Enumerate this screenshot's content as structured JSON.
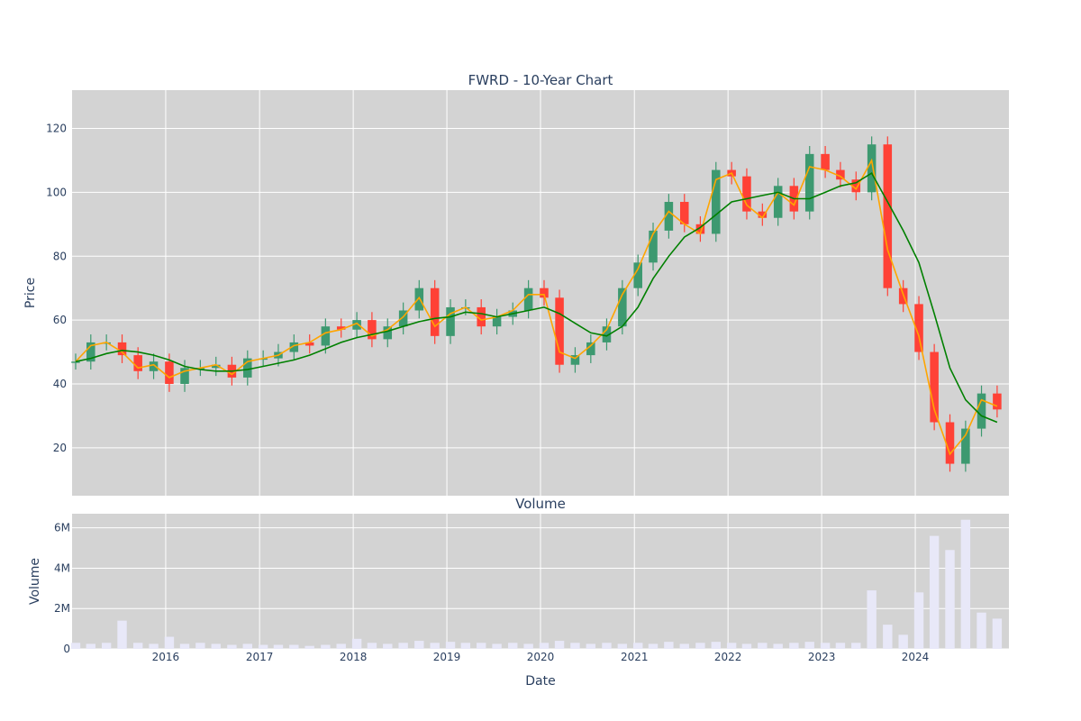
{
  "chart_data": [
    {
      "type": "candlestick",
      "title": "FWRD - 10-Year Chart",
      "ylabel": "Price",
      "yticks": [
        20,
        40,
        60,
        80,
        100,
        120
      ],
      "ylim": [
        5,
        132
      ],
      "xlim": [
        "2015-01-01",
        "2024-12-31"
      ],
      "xticks": [
        "2016",
        "2017",
        "2018",
        "2019",
        "2020",
        "2021",
        "2022",
        "2023",
        "2024"
      ],
      "grid": true,
      "colors": {
        "up": "#3d9970",
        "down": "#ff4136",
        "ma_short": "#ffa500",
        "ma_long": "#008000",
        "plot_bg": "#d3d3d3"
      },
      "series": [
        {
          "type": "candlestick",
          "x": [
            "2015-01",
            "2015-03",
            "2015-05",
            "2015-07",
            "2015-09",
            "2015-11",
            "2016-01",
            "2016-03",
            "2016-05",
            "2016-07",
            "2016-09",
            "2016-11",
            "2017-01",
            "2017-03",
            "2017-05",
            "2017-07",
            "2017-09",
            "2017-11",
            "2018-01",
            "2018-03",
            "2018-05",
            "2018-07",
            "2018-09",
            "2018-11",
            "2019-01",
            "2019-03",
            "2019-05",
            "2019-07",
            "2019-09",
            "2019-11",
            "2020-01",
            "2020-03",
            "2020-05",
            "2020-07",
            "2020-09",
            "2020-11",
            "2021-01",
            "2021-03",
            "2021-05",
            "2021-07",
            "2021-09",
            "2021-11",
            "2022-01",
            "2022-03",
            "2022-05",
            "2022-07",
            "2022-09",
            "2022-11",
            "2023-01",
            "2023-03",
            "2023-05",
            "2023-07",
            "2023-09",
            "2023-11",
            "2024-01",
            "2024-03",
            "2024-05",
            "2024-07",
            "2024-09",
            "2024-11"
          ],
          "close": [
            47,
            53,
            53,
            49,
            44,
            47,
            40,
            45,
            45,
            46,
            42,
            48,
            48,
            50,
            53,
            52,
            58,
            57,
            60,
            54,
            58,
            63,
            70,
            55,
            64,
            64,
            58,
            61,
            63,
            70,
            67,
            46,
            49,
            53,
            58,
            70,
            78,
            88,
            97,
            90,
            87,
            107,
            105,
            94,
            92,
            102,
            94,
            112,
            107,
            104,
            100,
            115,
            70,
            65,
            50,
            28,
            15,
            26,
            37,
            32
          ]
        },
        {
          "type": "line",
          "x": [
            "2015-01",
            "2015-03",
            "2015-05",
            "2015-07",
            "2015-09",
            "2015-11",
            "2016-01",
            "2016-03",
            "2016-05",
            "2016-07",
            "2016-09",
            "2016-11",
            "2017-01",
            "2017-03",
            "2017-05",
            "2017-07",
            "2017-09",
            "2017-11",
            "2018-01",
            "2018-03",
            "2018-05",
            "2018-07",
            "2018-09",
            "2018-11",
            "2019-01",
            "2019-03",
            "2019-05",
            "2019-07",
            "2019-09",
            "2019-11",
            "2020-01",
            "2020-03",
            "2020-05",
            "2020-07",
            "2020-09",
            "2020-11",
            "2021-01",
            "2021-03",
            "2021-05",
            "2021-07",
            "2021-09",
            "2021-11",
            "2022-01",
            "2022-03",
            "2022-05",
            "2022-07",
            "2022-09",
            "2022-11",
            "2023-01",
            "2023-03",
            "2023-05",
            "2023-07",
            "2023-09",
            "2023-11",
            "2024-01",
            "2024-03",
            "2024-05",
            "2024-07",
            "2024-09",
            "2024-11"
          ],
          "values": [
            47,
            52,
            53,
            50,
            45,
            46,
            42,
            44,
            45,
            46,
            43,
            47,
            48,
            49,
            52,
            53,
            56,
            57,
            59,
            55,
            57,
            61,
            67,
            58,
            62,
            64,
            60,
            61,
            63,
            68,
            68,
            50,
            48,
            52,
            57,
            68,
            76,
            87,
            94,
            90,
            87,
            104,
            106,
            96,
            92,
            100,
            96,
            108,
            107,
            105,
            101,
            110,
            82,
            68,
            55,
            32,
            18,
            24,
            35,
            33
          ]
        },
        {
          "type": "line",
          "x": [
            "2015-01",
            "2015-03",
            "2015-05",
            "2015-07",
            "2015-09",
            "2015-11",
            "2016-01",
            "2016-03",
            "2016-05",
            "2016-07",
            "2016-09",
            "2016-11",
            "2017-01",
            "2017-03",
            "2017-05",
            "2017-07",
            "2017-09",
            "2017-11",
            "2018-01",
            "2018-03",
            "2018-05",
            "2018-07",
            "2018-09",
            "2018-11",
            "2019-01",
            "2019-03",
            "2019-05",
            "2019-07",
            "2019-09",
            "2019-11",
            "2020-01",
            "2020-03",
            "2020-05",
            "2020-07",
            "2020-09",
            "2020-11",
            "2021-01",
            "2021-03",
            "2021-05",
            "2021-07",
            "2021-09",
            "2021-11",
            "2022-01",
            "2022-03",
            "2022-05",
            "2022-07",
            "2022-09",
            "2022-11",
            "2023-01",
            "2023-03",
            "2023-05",
            "2023-07",
            "2023-09",
            "2023-11",
            "2024-01",
            "2024-03",
            "2024-05",
            "2024-07",
            "2024-09",
            "2024-11"
          ],
          "values": [
            47,
            48,
            49.5,
            50.5,
            50,
            49,
            47.5,
            45.5,
            44.5,
            44,
            44,
            44.5,
            45.5,
            46.5,
            47.5,
            49,
            51,
            53,
            54.5,
            55.5,
            56.5,
            58,
            59.5,
            60.5,
            61,
            62.5,
            62,
            61,
            62,
            63,
            64,
            62,
            59,
            56,
            55,
            58,
            64,
            73,
            80,
            86,
            89,
            93,
            97,
            98,
            99,
            100,
            98,
            98,
            100,
            102,
            103,
            106,
            97,
            88,
            78,
            62,
            45,
            35,
            30,
            28
          ]
        }
      ]
    },
    {
      "type": "bar",
      "title": "Volume",
      "xlabel": "Date",
      "ylabel": "Volume",
      "yticks": [
        0,
        2000000,
        4000000,
        6000000
      ],
      "ytick_labels": [
        "0",
        "2M",
        "4M",
        "6M"
      ],
      "ylim": [
        0,
        6700000
      ],
      "xlim": [
        "2015-01-01",
        "2024-12-31"
      ],
      "xticks": [
        "2016",
        "2017",
        "2018",
        "2019",
        "2020",
        "2021",
        "2022",
        "2023",
        "2024"
      ],
      "grid": true,
      "colors": {
        "bar": "#e8e8f8",
        "plot_bg": "#d3d3d3"
      },
      "series": [
        {
          "x": [
            "2015-01",
            "2015-03",
            "2015-05",
            "2015-07",
            "2015-09",
            "2015-11",
            "2016-01",
            "2016-03",
            "2016-05",
            "2016-07",
            "2016-09",
            "2016-11",
            "2017-01",
            "2017-03",
            "2017-05",
            "2017-07",
            "2017-09",
            "2017-11",
            "2018-01",
            "2018-03",
            "2018-05",
            "2018-07",
            "2018-09",
            "2018-11",
            "2019-01",
            "2019-03",
            "2019-05",
            "2019-07",
            "2019-09",
            "2019-11",
            "2020-01",
            "2020-03",
            "2020-05",
            "2020-07",
            "2020-09",
            "2020-11",
            "2021-01",
            "2021-03",
            "2021-05",
            "2021-07",
            "2021-09",
            "2021-11",
            "2022-01",
            "2022-03",
            "2022-05",
            "2022-07",
            "2022-09",
            "2022-11",
            "2023-01",
            "2023-03",
            "2023-05",
            "2023-07",
            "2023-09",
            "2023-11",
            "2024-01",
            "2024-03",
            "2024-05",
            "2024-07",
            "2024-09",
            "2024-11"
          ],
          "values": [
            300000,
            250000,
            300000,
            1400000,
            300000,
            250000,
            600000,
            250000,
            300000,
            250000,
            200000,
            250000,
            200000,
            200000,
            200000,
            150000,
            200000,
            250000,
            500000,
            300000,
            250000,
            300000,
            400000,
            300000,
            350000,
            300000,
            300000,
            250000,
            300000,
            250000,
            300000,
            400000,
            300000,
            250000,
            300000,
            250000,
            300000,
            250000,
            350000,
            250000,
            300000,
            350000,
            300000,
            250000,
            300000,
            250000,
            300000,
            350000,
            300000,
            300000,
            300000,
            2900000,
            1200000,
            700000,
            2800000,
            5600000,
            4900000,
            6400000,
            1800000,
            1500000
          ]
        }
      ]
    }
  ]
}
